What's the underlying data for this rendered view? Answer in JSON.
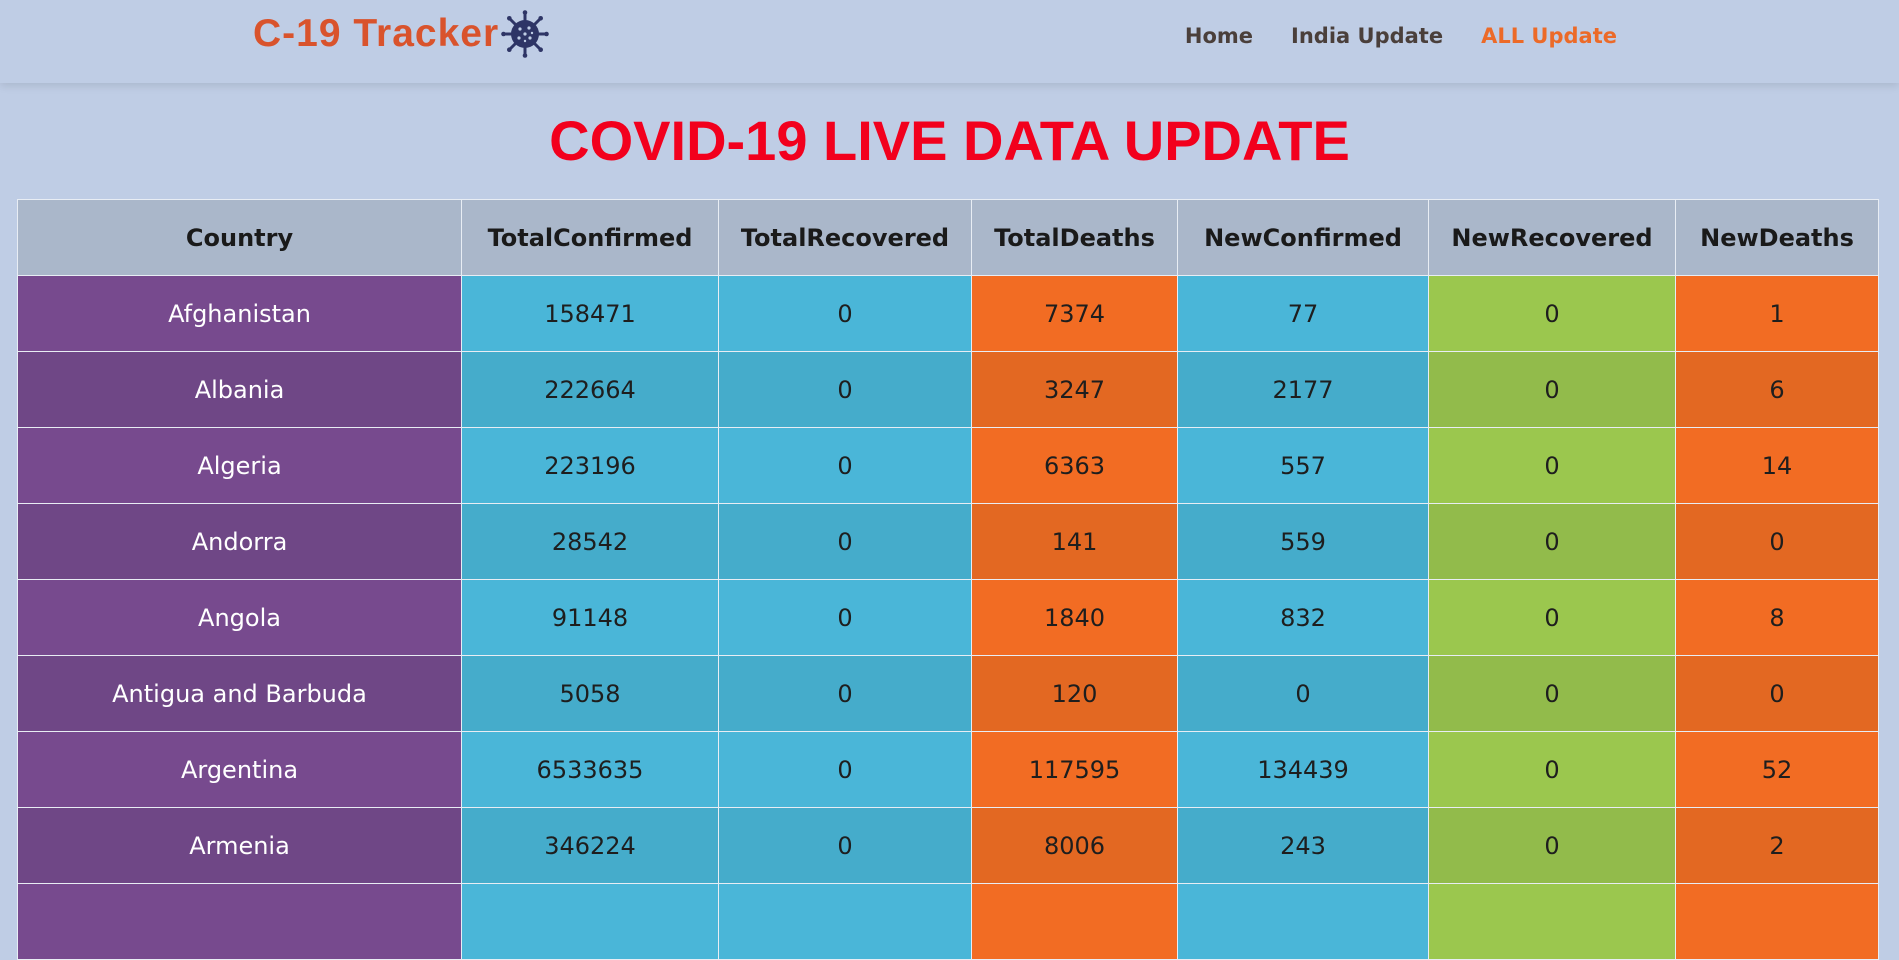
{
  "brand": {
    "text": "C-19 Tracker",
    "icon": "virus-icon"
  },
  "nav": [
    {
      "label": "Home",
      "active": false
    },
    {
      "label": "India Update",
      "active": false
    },
    {
      "label": "ALL Update",
      "active": true
    }
  ],
  "page_title": "COVID-19 LIVE DATA UPDATE",
  "table": {
    "headers": [
      "Country",
      "TotalConfirmed",
      "TotalRecovered",
      "TotalDeaths",
      "NewConfirmed",
      "NewRecovered",
      "NewDeaths"
    ],
    "rows": [
      [
        "Afghanistan",
        "158471",
        "0",
        "7374",
        "77",
        "0",
        "1"
      ],
      [
        "Albania",
        "222664",
        "0",
        "3247",
        "2177",
        "0",
        "6"
      ],
      [
        "Algeria",
        "223196",
        "0",
        "6363",
        "557",
        "0",
        "14"
      ],
      [
        "Andorra",
        "28542",
        "0",
        "141",
        "559",
        "0",
        "0"
      ],
      [
        "Angola",
        "91148",
        "0",
        "1840",
        "832",
        "0",
        "8"
      ],
      [
        "Antigua and Barbuda",
        "5058",
        "0",
        "120",
        "0",
        "0",
        "0"
      ],
      [
        "Argentina",
        "6533635",
        "0",
        "117595",
        "134439",
        "0",
        "52"
      ],
      [
        "Armenia",
        "346224",
        "0",
        "8006",
        "243",
        "0",
        "2"
      ],
      [
        "",
        "",
        "",
        "",
        "",
        "",
        ""
      ]
    ]
  },
  "colors": {
    "brand": "#d9532c",
    "title": "#f2001d",
    "country_col": "#774a8e",
    "blue_col": "#4ab6d8",
    "orange_col": "#f26c23",
    "green_col": "#9bc74e"
  }
}
